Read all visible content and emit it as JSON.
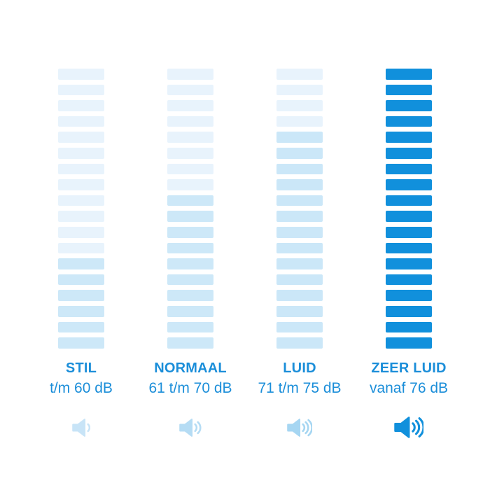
{
  "chart_data": {
    "type": "bar",
    "subtype": "segmented-volume-columns",
    "title": "",
    "categories": [
      "STIL",
      "NORMAAL",
      "LUID",
      "ZEER LUID"
    ],
    "values": [
      6,
      10,
      14,
      18
    ],
    "values_meaning": "filled segments out of segments_per_column",
    "segments_per_column": 18,
    "label_color": "#1b8ed9",
    "background": "#ffffff",
    "legend": null,
    "grid": false,
    "columns": [
      {
        "label": "STIL",
        "range_label": "t/m 60 dB",
        "filled_segments": 6,
        "filled_color": "#cde8f8",
        "empty_color": "#e8f3fc",
        "icon": {
          "name": "speaker-icon",
          "waves": 1,
          "color": "#c8e4f7",
          "large": false
        }
      },
      {
        "label": "NORMAAL",
        "range_label": "61 t/m 70 dB",
        "filled_segments": 10,
        "filled_color": "#cde8f8",
        "empty_color": "#e8f3fc",
        "icon": {
          "name": "speaker-icon",
          "waves": 2,
          "color": "#b5dcf4",
          "large": false
        }
      },
      {
        "label": "LUID",
        "range_label": "71 t/m 75 dB",
        "filled_segments": 14,
        "filled_color": "#cbe7f8",
        "empty_color": "#e8f3fc",
        "icon": {
          "name": "speaker-icon",
          "waves": 3,
          "color": "#a6d6f2",
          "large": false
        }
      },
      {
        "label": "ZEER LUID",
        "range_label": "vanaf 76 dB",
        "filled_segments": 18,
        "filled_color": "#1190dc",
        "empty_color": "#1190dc",
        "icon": {
          "name": "speaker-icon",
          "waves": 3,
          "color": "#1190dc",
          "large": true
        }
      }
    ]
  }
}
